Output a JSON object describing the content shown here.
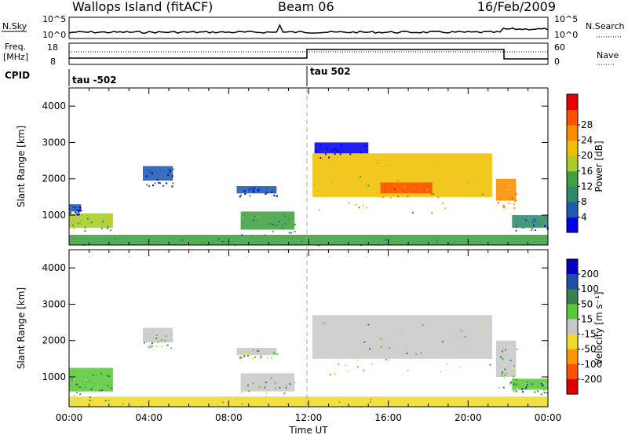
{
  "header": {
    "station": "Wallops Island (fitACF)",
    "beam": "Beam 06",
    "date": "16/Feb/2009"
  },
  "top_strip": {
    "nsky_label": "N.Sky",
    "nsearch_label": "N.Search",
    "left_ticks": [
      "10^5",
      "10^0"
    ],
    "right_ticks": [
      "10^5",
      "10^0"
    ],
    "freq_label_line1": "Freq.",
    "freq_label_line2": "[MHz]",
    "freq_ticks": [
      "18",
      "8"
    ],
    "nave_label": "Nave",
    "nave_ticks": [
      "60",
      "0"
    ],
    "cpid_label": "CPID",
    "cpid_segments": [
      {
        "label": "tau -502",
        "start_hour": 0
      },
      {
        "label": "tau 502",
        "start_hour": 12
      }
    ]
  },
  "chart_data": [
    {
      "type": "heatmap",
      "name": "power",
      "xlabel": "Time UT",
      "ylabel": "Slant Range [km]",
      "xlim": [
        0,
        24
      ],
      "ylim": [
        180,
        4500
      ],
      "yticks": [
        "1000",
        "2000",
        "3000",
        "4000"
      ],
      "colorbar": {
        "label": "Power [dB]",
        "ticks": [
          "4",
          "8",
          "12",
          "16",
          "20",
          "24",
          "28"
        ],
        "colors": [
          "#0000ee",
          "#1e5ab4",
          "#2f8a6a",
          "#3fa040",
          "#a8cc28",
          "#f0c000",
          "#ff8c00",
          "#ff5000",
          "#e80000"
        ]
      },
      "regions": [
        {
          "t0": 0.0,
          "t1": 2.2,
          "r0": 650,
          "r1": 1050,
          "level": 4
        },
        {
          "t0": 0.0,
          "t1": 0.6,
          "r0": 1100,
          "r1": 1300,
          "level": 1
        },
        {
          "t0": 3.7,
          "t1": 5.2,
          "r0": 1950,
          "r1": 2350,
          "level": 1
        },
        {
          "t0": 8.4,
          "t1": 10.4,
          "r0": 1600,
          "r1": 1800,
          "level": 1
        },
        {
          "t0": 8.6,
          "t1": 11.3,
          "r0": 600,
          "r1": 1100,
          "level": 3
        },
        {
          "t0": 12.2,
          "t1": 21.2,
          "r0": 1500,
          "r1": 2700,
          "level": 5
        },
        {
          "t0": 15.6,
          "t1": 18.2,
          "r0": 1600,
          "r1": 1900,
          "level": 7
        },
        {
          "t0": 21.4,
          "t1": 22.4,
          "r0": 1400,
          "r1": 2000,
          "level": 6
        },
        {
          "t0": 22.2,
          "t1": 24.0,
          "r0": 650,
          "r1": 1000,
          "level": 2
        },
        {
          "t0": 12.3,
          "t1": 15.0,
          "r0": 2700,
          "r1": 3000,
          "level": 0
        },
        {
          "t0": 0.0,
          "t1": 24.0,
          "r0": 190,
          "r1": 460,
          "level": 3
        }
      ]
    },
    {
      "type": "heatmap",
      "name": "velocity",
      "xlabel": "Time UT",
      "ylabel": "Slant Range [km]",
      "xlim": [
        0,
        24
      ],
      "ylim": [
        180,
        4500
      ],
      "xticks": [
        "00:00",
        "04:00",
        "08:00",
        "12:00",
        "16:00",
        "20:00",
        "00:00"
      ],
      "yticks": [
        "1000",
        "2000",
        "3000",
        "4000"
      ],
      "colorbar": {
        "label": "Velocity [m s⁻¹]",
        "ticks": [
          "200",
          "100",
          "50",
          "15",
          "-15",
          "-50",
          "-100",
          "-200"
        ],
        "colors": [
          "#0000c8",
          "#1e4fa8",
          "#3a8050",
          "#5ac838",
          "#c8c8c8",
          "#f0dc28",
          "#ff9600",
          "#ff5000",
          "#e00000"
        ]
      },
      "regions": [
        {
          "t0": 0.0,
          "t1": 2.2,
          "r0": 600,
          "r1": 1250,
          "level": 3
        },
        {
          "t0": 3.7,
          "t1": 5.2,
          "r0": 1950,
          "r1": 2350,
          "level": 4
        },
        {
          "t0": 8.4,
          "t1": 10.4,
          "r0": 1600,
          "r1": 1800,
          "level": 4
        },
        {
          "t0": 8.6,
          "t1": 11.3,
          "r0": 600,
          "r1": 1100,
          "level": 4
        },
        {
          "t0": 12.2,
          "t1": 21.2,
          "r0": 1500,
          "r1": 2700,
          "level": 4
        },
        {
          "t0": 21.4,
          "t1": 22.4,
          "r0": 1000,
          "r1": 2000,
          "level": 4
        },
        {
          "t0": 22.2,
          "t1": 24.0,
          "r0": 650,
          "r1": 950,
          "level": 3
        },
        {
          "t0": 0.0,
          "t1": 24.0,
          "r0": 190,
          "r1": 460,
          "level": 5
        }
      ]
    }
  ]
}
